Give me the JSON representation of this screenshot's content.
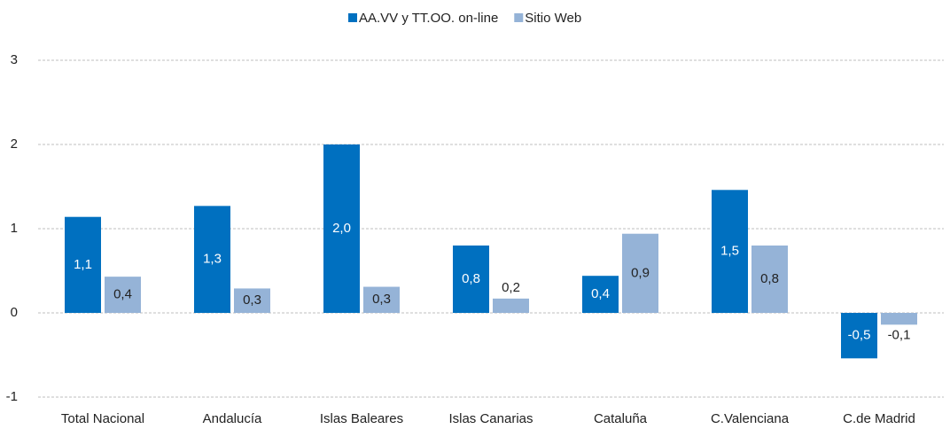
{
  "chart_data": {
    "type": "bar",
    "categories": [
      "Total Nacional",
      "Andalucía",
      "Islas Baleares",
      "Islas Canarias",
      "Cataluña",
      "C.Valenciana",
      "C.de Madrid"
    ],
    "series": [
      {
        "name": "AA.VV y TT.OO. on-line",
        "color": "#0070c0",
        "label_color": "#ffffff",
        "values": [
          1.14,
          1.27,
          2.0,
          0.8,
          0.44,
          1.46,
          -0.54
        ],
        "value_labels": [
          "1,1",
          "1,3",
          "2,0",
          "0,8",
          "0,4",
          "1,5",
          "-0,5"
        ]
      },
      {
        "name": "Sitio Web",
        "color": "#95b3d7",
        "label_color": "#222222",
        "values": [
          0.43,
          0.29,
          0.31,
          0.17,
          0.94,
          0.8,
          -0.14
        ],
        "value_labels": [
          "0,4",
          "0,3",
          "0,3",
          "0,2",
          "0,9",
          "0,8",
          "-0,1"
        ]
      }
    ],
    "ylim": [
      -1.1,
      3.0
    ],
    "yticks": [
      -1,
      0,
      1,
      2,
      3
    ],
    "grid": true,
    "legend": "top"
  }
}
